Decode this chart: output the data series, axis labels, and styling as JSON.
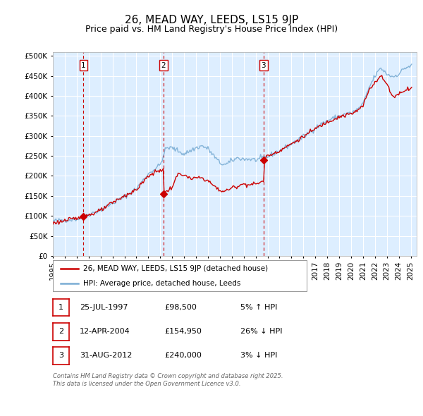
{
  "title": "26, MEAD WAY, LEEDS, LS15 9JP",
  "subtitle": "Price paid vs. HM Land Registry's House Price Index (HPI)",
  "ylabel_ticks": [
    "£0",
    "£50K",
    "£100K",
    "£150K",
    "£200K",
    "£250K",
    "£300K",
    "£350K",
    "£400K",
    "£450K",
    "£500K"
  ],
  "ytick_values": [
    0,
    50000,
    100000,
    150000,
    200000,
    250000,
    300000,
    350000,
    400000,
    450000,
    500000
  ],
  "ylim": [
    0,
    510000
  ],
  "xlim_start": 1995.0,
  "xlim_end": 2025.5,
  "xtick_years": [
    1995,
    1996,
    1997,
    1998,
    1999,
    2000,
    2001,
    2002,
    2003,
    2004,
    2005,
    2006,
    2007,
    2008,
    2009,
    2010,
    2011,
    2012,
    2013,
    2014,
    2015,
    2016,
    2017,
    2018,
    2019,
    2020,
    2021,
    2022,
    2023,
    2024,
    2025
  ],
  "sale_dates": [
    1997.57,
    2004.28,
    2012.67
  ],
  "sale_prices": [
    98500,
    154950,
    240000
  ],
  "sale_labels": [
    "1",
    "2",
    "3"
  ],
  "sale_date_strings": [
    "25-JUL-1997",
    "12-APR-2004",
    "31-AUG-2012"
  ],
  "sale_price_strings": [
    "£98,500",
    "£154,950",
    "£240,000"
  ],
  "sale_hpi_strings": [
    "5% ↑ HPI",
    "26% ↓ HPI",
    "3% ↓ HPI"
  ],
  "legend_line1": "26, MEAD WAY, LEEDS, LS15 9JP (detached house)",
  "legend_line2": "HPI: Average price, detached house, Leeds",
  "footnote": "Contains HM Land Registry data © Crown copyright and database right 2025.\nThis data is licensed under the Open Government Licence v3.0.",
  "line_color_red": "#cc0000",
  "line_color_blue": "#7aadd4",
  "bg_color": "#ddeeff",
  "grid_color": "#ffffff",
  "title_fontsize": 11,
  "subtitle_fontsize": 9
}
